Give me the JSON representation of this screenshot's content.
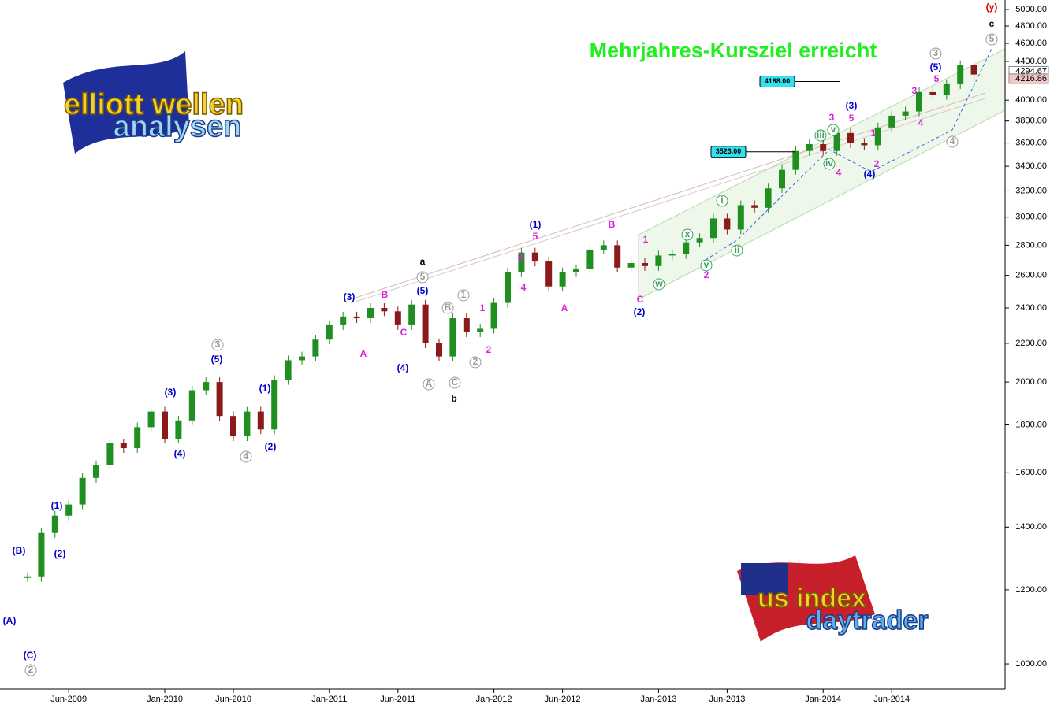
{
  "chart_data": {
    "type": "candlestick",
    "title": "Mehrjahres-Kursziel erreicht",
    "log_scale": true,
    "up_color": "#1f8f1f",
    "down_color": "#8b1a1a",
    "categories": [
      null,
      null,
      null,
      "Jun-2009",
      null,
      null,
      null,
      null,
      null,
      null,
      "Jan-2010",
      null,
      null,
      null,
      null,
      "Jun-2010",
      null,
      null,
      null,
      null,
      null,
      null,
      "Jan-2011",
      null,
      null,
      null,
      null,
      "Jun-2011",
      null,
      null,
      null,
      null,
      null,
      null,
      "Jan-2012",
      null,
      null,
      null,
      null,
      "Jun-2012",
      null,
      null,
      null,
      null,
      null,
      null,
      "Jan-2013",
      null,
      null,
      null,
      null,
      "Jun-2013",
      null,
      null,
      null,
      null,
      null,
      null,
      "Jan-2014",
      null,
      null,
      null,
      null,
      "Jun-2014",
      null,
      null,
      null,
      null,
      null,
      null
    ],
    "values": [
      1238,
      1380,
      1440,
      1480,
      1580,
      1630,
      1720,
      1700,
      1790,
      1860,
      1740,
      1820,
      1960,
      2000,
      1840,
      1750,
      1860,
      1780,
      2010,
      2110,
      2130,
      2220,
      2300,
      2350,
      2340,
      2400,
      2380,
      2300,
      2420,
      2200,
      2130,
      2340,
      2260,
      2280,
      2430,
      2620,
      2750,
      2690,
      2530,
      2620,
      2640,
      2770,
      2800,
      2650,
      2680,
      2660,
      2730,
      2740,
      2820,
      2850,
      2990,
      2910,
      3090,
      3070,
      3220,
      3370,
      3530,
      3590,
      3530,
      3690,
      3600,
      3580,
      3740,
      3850,
      3890,
      4080,
      4050,
      4160,
      4360,
      4260
    ],
    "ylim": [
      940,
      5117
    ],
    "yticks": [
      {
        "value": 1000,
        "label": "1000.00"
      },
      {
        "value": 1200,
        "label": "1200.00"
      },
      {
        "value": 1400,
        "label": "1400.00"
      },
      {
        "value": 1600,
        "label": "1600.00"
      },
      {
        "value": 1800,
        "label": "1800.00"
      },
      {
        "value": 2000,
        "label": "2000.00"
      },
      {
        "value": 2200,
        "label": "2200.00"
      },
      {
        "value": 2400,
        "label": "2400.00"
      },
      {
        "value": 2600,
        "label": "2600.00"
      },
      {
        "value": 2800,
        "label": "2800.00"
      },
      {
        "value": 3000,
        "label": "3000.00"
      },
      {
        "value": 3200,
        "label": "3200.00"
      },
      {
        "value": 3400,
        "label": "3400.00"
      },
      {
        "value": 3600,
        "label": "3600.00"
      },
      {
        "value": 3800,
        "label": "3800.00"
      },
      {
        "value": 4000,
        "label": "4000.00"
      },
      {
        "value": 4400,
        "label": "4400.00"
      },
      {
        "value": 4600,
        "label": "4600.00"
      },
      {
        "value": 4800,
        "label": "4800.00"
      },
      {
        "value": 5000,
        "label": "5000.00"
      }
    ],
    "price_labels": [
      {
        "value": 4294.67,
        "label": "4294.67",
        "color": "#ffffff"
      },
      {
        "value": 4216.86,
        "label": "4216.86",
        "color": "#f4c6c6"
      }
    ],
    "targets": [
      {
        "value": 4188,
        "label": "4188.00"
      },
      {
        "value": 3523,
        "label": "3523.00"
      }
    ],
    "annotations": [
      {
        "text": "(A)",
        "color": "#0000cc"
      },
      {
        "text": "(B)",
        "color": "#0000cc"
      },
      {
        "text": "(C)",
        "color": "#0000cc"
      },
      {
        "text": "(1)",
        "color": "#0000cc"
      },
      {
        "text": "(2)",
        "color": "#0000cc"
      },
      {
        "text": "(3)",
        "color": "#0000cc"
      },
      {
        "text": "(4)",
        "color": "#0000cc"
      },
      {
        "text": "(5)",
        "color": "#0000cc"
      },
      {
        "text": "(1)",
        "color": "#0000cc"
      },
      {
        "text": "(2)",
        "color": "#0000cc"
      },
      {
        "text": "(3)",
        "color": "#0000cc"
      },
      {
        "text": "(4)",
        "color": "#0000cc"
      },
      {
        "text": "(5)",
        "color": "#0000cc"
      },
      {
        "text": "(1)",
        "color": "#0000cc"
      },
      {
        "text": "(2)",
        "color": "#0000cc"
      },
      {
        "text": "(3)",
        "color": "#0000cc"
      },
      {
        "text": "(4)",
        "color": "#0000cc"
      },
      {
        "text": "(5)",
        "color": "#0000cc"
      },
      {
        "text": "A",
        "color": "#e020e0"
      },
      {
        "text": "B",
        "color": "#e020e0"
      },
      {
        "text": "C",
        "color": "#e020e0"
      },
      {
        "text": "1",
        "color": "#e020e0"
      },
      {
        "text": "2",
        "color": "#e020e0"
      },
      {
        "text": "3",
        "color": "#e020e0"
      },
      {
        "text": "4",
        "color": "#e020e0"
      },
      {
        "text": "5",
        "color": "#e020e0"
      },
      {
        "text": "A",
        "color": "#e020e0"
      },
      {
        "text": "B",
        "color": "#e020e0"
      },
      {
        "text": "C",
        "color": "#e020e0"
      },
      {
        "text": "1",
        "color": "#e020e0"
      },
      {
        "text": "2",
        "color": "#e020e0"
      },
      {
        "text": "3",
        "color": "#e020e0"
      },
      {
        "text": "4",
        "color": "#e020e0"
      },
      {
        "text": "5",
        "color": "#e020e0"
      },
      {
        "text": "1",
        "color": "#e020e0"
      },
      {
        "text": "2",
        "color": "#e020e0"
      },
      {
        "text": "3",
        "color": "#e020e0"
      },
      {
        "text": "4",
        "color": "#e020e0"
      },
      {
        "text": "5",
        "color": "#e020e0"
      },
      {
        "text": "2",
        "color": "#999999",
        "circle": true
      },
      {
        "text": "3",
        "color": "#999999",
        "circle": true
      },
      {
        "text": "4",
        "color": "#999999",
        "circle": true
      },
      {
        "text": "5",
        "color": "#999999",
        "circle": true
      },
      {
        "text": "A",
        "color": "#999999",
        "circle": true
      },
      {
        "text": "B",
        "color": "#999999",
        "circle": true
      },
      {
        "text": "C",
        "color": "#999999",
        "circle": true
      },
      {
        "text": "1",
        "color": "#999999",
        "circle": true
      },
      {
        "text": "2",
        "color": "#999999",
        "circle": true
      },
      {
        "text": "3",
        "color": "#999999",
        "circle": true
      },
      {
        "text": "4",
        "color": "#999999",
        "circle": true
      },
      {
        "text": "5",
        "color": "#999999",
        "circle": true
      },
      {
        "text": "i",
        "color": "#3aa05a",
        "circle": true
      },
      {
        "text": "ii",
        "color": "#3aa05a",
        "circle": true
      },
      {
        "text": "iii",
        "color": "#3aa05a",
        "circle": true
      },
      {
        "text": "iv",
        "color": "#3aa05a",
        "circle": true
      },
      {
        "text": "v",
        "color": "#3aa05a",
        "circle": true
      },
      {
        "text": "v",
        "color": "#3aa05a",
        "circle": true
      },
      {
        "text": "w",
        "color": "#3aa05a",
        "circle": true
      },
      {
        "text": "x",
        "color": "#3aa05a",
        "circle": true
      },
      {
        "text": "a",
        "color": "#000000"
      },
      {
        "text": "b",
        "color": "#000000"
      },
      {
        "text": "c",
        "color": "#000000"
      },
      {
        "text": "(y)",
        "color": "#dd0000"
      }
    ],
    "logos": [
      {
        "line1": "elliott wellen",
        "line2": "analysen"
      },
      {
        "line1": "us index",
        "line2": "daytrader"
      }
    ]
  }
}
